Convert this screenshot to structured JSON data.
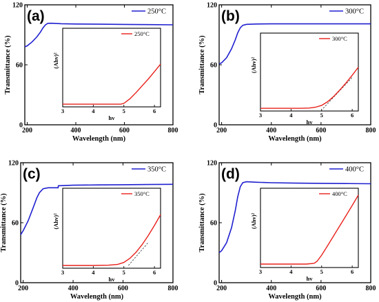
{
  "chart_data": [
    {
      "type": "line",
      "panel_label": "(a)",
      "xlabel": "Wavelength (nm)",
      "ylabel": "Transmittance (%)",
      "xlim": [
        190,
        800
      ],
      "ylim": [
        0,
        120
      ],
      "xticks": [
        200,
        400,
        600,
        800
      ],
      "yticks": [
        0,
        60,
        120
      ],
      "colors": {
        "main": "#1f1fd0",
        "inset": "#e8201a"
      },
      "series": [
        {
          "name": "250°C",
          "x": [
            190,
            200,
            220,
            240,
            255,
            265,
            275,
            285,
            300,
            340,
            400,
            500,
            600,
            700,
            800
          ],
          "y": [
            78,
            79,
            83,
            88,
            93,
            97,
            100,
            101.5,
            101.6,
            101.1,
            100.8,
            100.6,
            100.4,
            100.2,
            100.0
          ]
        }
      ],
      "inset": {
        "xlabel": "hv",
        "ylabel": "(Ahv)²",
        "xlim": [
          3,
          6.2
        ],
        "xticks": [
          3,
          4,
          5,
          6
        ],
        "series": [
          {
            "name": "250°C",
            "x": [
              3,
              3.5,
              4,
              4.5,
              4.9,
              5.0,
              5.2,
              5.4,
              5.6,
              5.8,
              6.0,
              6.2
            ],
            "y": [
              0,
              0,
              0,
              0,
              0,
              0.3,
              2.0,
              4.3,
              6.8,
              9.3,
              12.0,
              14.8
            ]
          }
        ],
        "ylim": [
          -1,
          28
        ],
        "tangent": null
      }
    },
    {
      "type": "line",
      "panel_label": "(b)",
      "xlabel": "Wavelength (nm)",
      "ylabel": "Transmittance (%)",
      "xlim": [
        190,
        800
      ],
      "ylim": [
        0,
        120
      ],
      "xticks": [
        200,
        400,
        600,
        800
      ],
      "yticks": [
        0,
        60,
        120
      ],
      "colors": {
        "main": "#1f1fd0",
        "inset": "#e8201a"
      },
      "series": [
        {
          "name": "300°C",
          "x": [
            190,
            200,
            220,
            240,
            255,
            265,
            275,
            285,
            300,
            340,
            400,
            500,
            600,
            700,
            800
          ],
          "y": [
            61,
            62,
            67,
            76,
            85,
            92,
            97,
            99.5,
            100.5,
            100.8,
            101,
            101,
            101,
            101,
            101
          ]
        }
      ],
      "inset": {
        "xlabel": "hv",
        "ylabel": "(Ahv)²",
        "xlim": [
          3,
          6.2
        ],
        "xticks": [
          3,
          4,
          5,
          6
        ],
        "series": [
          {
            "name": "300°C",
            "x": [
              3,
              3.5,
              4,
              4.3,
              4.6,
              4.8,
              5.0,
              5.2,
              5.4,
              5.6,
              5.8,
              6.0,
              6.2
            ],
            "y": [
              0,
              0,
              0,
              0,
              0.1,
              0.4,
              1.1,
              2.5,
              4.5,
              6.9,
              9.5,
              12.3,
              15.3
            ]
          }
        ],
        "ylim": [
          -1,
          28
        ],
        "tangent": {
          "x": [
            5.05,
            6.0
          ],
          "y": [
            0,
            11.5
          ]
        }
      }
    },
    {
      "type": "line",
      "panel_label": "(c)",
      "xlabel": "Wavelength (nm)",
      "ylabel": "Transmittance (%)",
      "xlim": [
        190,
        800
      ],
      "ylim": [
        0,
        120
      ],
      "xticks": [
        200,
        400,
        600,
        800
      ],
      "yticks": [
        0,
        60,
        120
      ],
      "colors": {
        "main": "#1f1fd0",
        "inset": "#e8201a"
      },
      "series": [
        {
          "name": "350°C",
          "x": [
            190,
            200,
            220,
            240,
            255,
            265,
            280,
            300,
            340,
            341,
            400,
            500,
            600,
            700,
            800
          ],
          "y": [
            48,
            52,
            62,
            75,
            85,
            90,
            94,
            95,
            95,
            97,
            97.5,
            97.8,
            98,
            98.2,
            98.4
          ]
        }
      ],
      "inset": {
        "xlabel": "hv",
        "ylabel": "(Ahv)²",
        "xlim": [
          3,
          6.2
        ],
        "xticks": [
          3,
          4,
          5,
          6
        ],
        "series": [
          {
            "name": "350°C",
            "x": [
              3,
              3.5,
              4,
              4.5,
              4.8,
              5.0,
              5.2,
              5.4,
              5.6,
              5.8,
              6.0,
              6.2
            ],
            "y": [
              0,
              0,
              0,
              0.1,
              0.4,
              1.1,
              2.6,
              4.8,
              7.6,
              10.9,
              14.5,
              18.4
            ]
          }
        ],
        "ylim": [
          -1,
          28
        ],
        "tangent": {
          "x": [
            5.15,
            5.8
          ],
          "y": [
            0,
            8.4
          ]
        }
      }
    },
    {
      "type": "line",
      "panel_label": "(d)",
      "xlabel": "Wavelength (nm)",
      "ylabel": "Transmittance (%)",
      "xlim": [
        190,
        800
      ],
      "ylim": [
        0,
        120
      ],
      "xticks": [
        200,
        400,
        600,
        800
      ],
      "yticks": [
        0,
        60,
        120
      ],
      "colors": {
        "main": "#1f1fd0",
        "inset": "#e8201a"
      },
      "series": [
        {
          "name": "400°C",
          "x": [
            190,
            200,
            220,
            240,
            255,
            265,
            275,
            285,
            300,
            340,
            400,
            500,
            600,
            700,
            800
          ],
          "y": [
            30,
            32,
            40,
            55,
            72,
            86,
            96,
            100,
            101,
            100.5,
            100,
            99.6,
            99.4,
            99.2,
            99.0
          ]
        }
      ],
      "inset": {
        "xlabel": "hv",
        "ylabel": "(Ahv)²",
        "xlim": [
          3,
          6.2
        ],
        "xticks": [
          3,
          4,
          5,
          6
        ],
        "series": [
          {
            "name": "400°C",
            "x": [
              3,
              3.5,
              4,
              4.5,
              4.75,
              4.85,
              5.0,
              5.2,
              5.4,
              5.6,
              5.8,
              6.0,
              6.2
            ],
            "y": [
              0,
              0,
              0,
              0,
              0.2,
              0.8,
              2.6,
              5.4,
              8.3,
              11.2,
              14.1,
              17.0,
              20.0
            ]
          }
        ],
        "ylim": [
          -1,
          22
        ],
        "tangent": null
      }
    }
  ]
}
